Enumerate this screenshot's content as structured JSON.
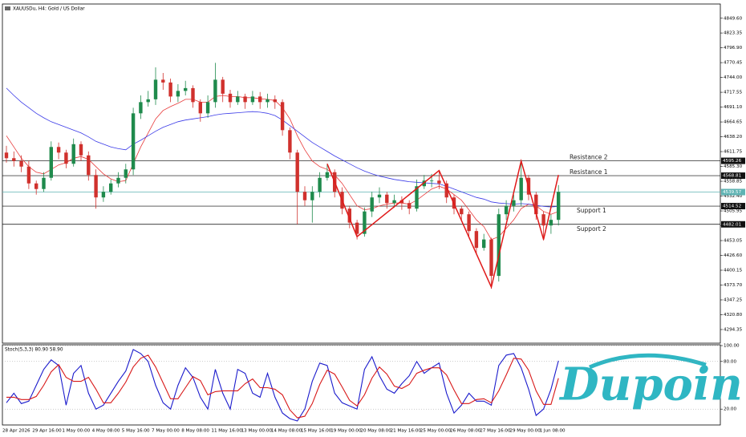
{
  "chart_data": [
    {
      "type": "candlestick",
      "title": "XAUUSDu, H4:  Gold / US Dollar",
      "watermark": "Dupoin",
      "categories": [
        "28 Apr 2026",
        null,
        null,
        null,
        "29 Apr 16:00",
        null,
        null,
        null,
        "1 May 00:00",
        null,
        null,
        null,
        "4 May 08:00",
        null,
        null,
        null,
        "5 May 16:00",
        null,
        null,
        null,
        "7 May 00:00",
        null,
        null,
        null,
        "8 May 08:00",
        null,
        null,
        null,
        "11 May 16:00",
        null,
        null,
        null,
        "13 May 00:00",
        null,
        null,
        null,
        "14 May 08:00",
        null,
        null,
        null,
        "15 May 16:00",
        null,
        null,
        null,
        "19 May 00:00",
        null,
        null,
        null,
        "20 May 08:00",
        null,
        null,
        null,
        "21 May 16:00",
        null,
        null,
        null,
        "25 May 00:00",
        null,
        null,
        null,
        "26 May 08:00",
        null,
        null,
        null,
        "27 May 16:00",
        null,
        null,
        null,
        "29 May 00:00",
        null,
        null,
        null,
        "1 Jun 08:00",
        null,
        null
      ],
      "open": [
        4610,
        4600,
        4595,
        4585,
        4555,
        4545,
        4565,
        4620,
        4610,
        4590,
        4625,
        4605,
        4570,
        4530,
        4540,
        4555,
        4565,
        4580,
        4680,
        4700,
        4705,
        4740,
        4735,
        4710,
        4720,
        4725,
        4700,
        4680,
        4700,
        4740,
        4715,
        4700,
        4710,
        4700,
        4710,
        4700,
        4705,
        4700,
        4650,
        4610,
        4540,
        4525,
        4540,
        4565,
        4575,
        4540,
        4510,
        4485,
        4465,
        4505,
        4530,
        4535,
        4520,
        4525,
        4520,
        4510,
        4550,
        4560,
        4560,
        4555,
        4530,
        4510,
        4500,
        4470,
        4440,
        4455,
        4390,
        4500,
        4515,
        4525,
        4565,
        4535,
        4500,
        4480,
        4490
      ],
      "high": [
        4622,
        4612,
        4605,
        4595,
        4560,
        4575,
        4630,
        4628,
        4615,
        4635,
        4630,
        4612,
        4580,
        4550,
        4562,
        4575,
        4590,
        4690,
        4712,
        4720,
        4762,
        4752,
        4742,
        4732,
        4738,
        4730,
        4705,
        4712,
        4770,
        4745,
        4722,
        4720,
        4715,
        4720,
        4718,
        4715,
        4712,
        4705,
        4655,
        4615,
        4550,
        4550,
        4575,
        4590,
        4580,
        4548,
        4515,
        4490,
        4512,
        4540,
        4548,
        4540,
        4535,
        4532,
        4525,
        4562,
        4570,
        4572,
        4577,
        4560,
        4535,
        4515,
        4505,
        4475,
        4465,
        4458,
        4510,
        4525,
        4535,
        4592,
        4570,
        4540,
        4505,
        4500,
        4552
      ],
      "low": [
        4592,
        4585,
        4575,
        4545,
        4535,
        4540,
        4560,
        4598,
        4582,
        4585,
        4595,
        4560,
        4510,
        4522,
        4535,
        4548,
        4555,
        4570,
        4670,
        4692,
        4695,
        4722,
        4700,
        4700,
        4712,
        4690,
        4665,
        4672,
        4690,
        4700,
        4690,
        4695,
        4688,
        4695,
        4688,
        4690,
        4688,
        4640,
        4598,
        4482,
        4515,
        4485,
        4530,
        4560,
        4530,
        4500,
        4475,
        4455,
        4460,
        4495,
        4520,
        4510,
        4512,
        4508,
        4500,
        4505,
        4545,
        4548,
        4545,
        4520,
        4500,
        4490,
        4460,
        4430,
        4435,
        4367,
        4380,
        4490,
        4505,
        4515,
        4525,
        4490,
        4453,
        4465,
        4480
      ],
      "close": [
        4600,
        4595,
        4585,
        4555,
        4545,
        4565,
        4620,
        4610,
        4590,
        4625,
        4605,
        4570,
        4530,
        4540,
        4555,
        4565,
        4580,
        4680,
        4700,
        4705,
        4740,
        4735,
        4710,
        4720,
        4725,
        4700,
        4680,
        4700,
        4740,
        4715,
        4700,
        4710,
        4700,
        4710,
        4700,
        4705,
        4700,
        4650,
        4610,
        4540,
        4525,
        4540,
        4565,
        4575,
        4540,
        4510,
        4485,
        4465,
        4505,
        4530,
        4535,
        4520,
        4525,
        4520,
        4510,
        4550,
        4560,
        4560,
        4555,
        4530,
        4510,
        4500,
        4470,
        4440,
        4455,
        4390,
        4500,
        4515,
        4525,
        4565,
        4535,
        4500,
        4480,
        4490,
        4540
      ],
      "up_color": "#1f8a4c",
      "down_color": "#d0312d",
      "moving_averages": [
        {
          "color": "#e83a3a",
          "values": [
            4640,
            4620,
            4600,
            4585,
            4575,
            4572,
            4580,
            4588,
            4592,
            4600,
            4603,
            4598,
            4585,
            4572,
            4563,
            4558,
            4560,
            4590,
            4620,
            4645,
            4670,
            4685,
            4692,
            4698,
            4705,
            4705,
            4700,
            4700,
            4710,
            4712,
            4710,
            4710,
            4708,
            4708,
            4706,
            4705,
            4703,
            4690,
            4670,
            4640,
            4615,
            4595,
            4585,
            4580,
            4570,
            4555,
            4535,
            4515,
            4508,
            4510,
            4515,
            4518,
            4520,
            4520,
            4518,
            4525,
            4535,
            4545,
            4550,
            4545,
            4535,
            4525,
            4508,
            4490,
            4478,
            4455,
            4460,
            4475,
            4490,
            4510,
            4518,
            4515,
            4505,
            4500,
            4505
          ]
        },
        {
          "color": "#3a3ae8",
          "values": [
            4725,
            4712,
            4700,
            4690,
            4680,
            4672,
            4665,
            4660,
            4655,
            4650,
            4645,
            4638,
            4630,
            4625,
            4620,
            4617,
            4615,
            4625,
            4632,
            4640,
            4648,
            4655,
            4660,
            4665,
            4668,
            4670,
            4672,
            4674,
            4677,
            4679,
            4680,
            4681,
            4682,
            4683,
            4682,
            4680,
            4676,
            4668,
            4658,
            4648,
            4638,
            4628,
            4620,
            4612,
            4604,
            4597,
            4590,
            4583,
            4577,
            4572,
            4568,
            4565,
            4562,
            4560,
            4558,
            4557,
            4556,
            4555,
            4554,
            4550,
            4545,
            4540,
            4535,
            4530,
            4527,
            4522,
            4520,
            4519,
            4518,
            4519,
            4518,
            4516,
            4514,
            4513,
            4514
          ]
        }
      ],
      "pattern": {
        "color": "#e01818",
        "x": [
          43,
          47,
          58,
          65,
          69,
          72,
          74
        ],
        "values": [
          4590,
          4460,
          4578,
          4370,
          4595,
          4455,
          4570
        ]
      },
      "levels": [
        {
          "label": "Resistance 2",
          "value": 4595.26
        },
        {
          "label": "Resistance 1",
          "value": 4568.81
        },
        {
          "label": "Support 1",
          "value": 4514.52
        },
        {
          "label": "Support 2",
          "value": 4482.01
        }
      ],
      "current_price": 4539.57,
      "current_color": "#5fb3b3",
      "ylim": [
        4270,
        4875
      ],
      "yticks": [
        {
          "value": 4849.6,
          "label": "4849.60"
        },
        {
          "value": 4823.35,
          "label": "4823.35"
        },
        {
          "value": 4796.9,
          "label": "4796.90"
        },
        {
          "value": 4770.45,
          "label": "4770.45"
        },
        {
          "value": 4744,
          "label": "4744.00"
        },
        {
          "value": 4717.55,
          "label": "4717.55"
        },
        {
          "value": 4691.1,
          "label": "4691.10"
        },
        {
          "value": 4664.65,
          "label": "4664.65"
        },
        {
          "value": 4638.2,
          "label": "4638.20"
        },
        {
          "value": 4611.75,
          "label": "4611.75"
        },
        {
          "value": 4585.3,
          "label": "4585.30"
        },
        {
          "value": 4558.85,
          "label": "4558.85"
        },
        {
          "value": 4532.4,
          "label": "4532.40"
        },
        {
          "value": 4505.95,
          "label": "4505.95"
        },
        {
          "value": 4479.5,
          "label": "4479.50"
        },
        {
          "value": 4453.05,
          "label": "4453.05"
        },
        {
          "value": 4426.6,
          "label": "4426.60"
        },
        {
          "value": 4400.15,
          "label": "4400.15"
        },
        {
          "value": 4373.7,
          "label": "4373.70"
        },
        {
          "value": 4347.25,
          "label": "4347.25"
        },
        {
          "value": 4320.8,
          "label": "4320.80"
        },
        {
          "value": 4294.35,
          "label": "4294.35"
        }
      ]
    },
    {
      "type": "line",
      "title": "Stoch(5,3,3) 80.90 58.90",
      "series": [
        {
          "color": "#1a1acc",
          "values": [
            28,
            40,
            27,
            30,
            50,
            70,
            82,
            75,
            25,
            65,
            75,
            40,
            20,
            25,
            40,
            55,
            68,
            95,
            90,
            80,
            50,
            28,
            20,
            50,
            72,
            60,
            35,
            20,
            70,
            40,
            20,
            70,
            65,
            40,
            35,
            65,
            35,
            15,
            8,
            5,
            20,
            55,
            78,
            75,
            40,
            28,
            24,
            20,
            70,
            86,
            62,
            45,
            40,
            52,
            62,
            80,
            65,
            72,
            78,
            40,
            15,
            25,
            40,
            30,
            30,
            25,
            75,
            88,
            90,
            72,
            45,
            12,
            20,
            45,
            80.9
          ]
        },
        {
          "color": "#d81818",
          "values": [
            35,
            35,
            32,
            32,
            36,
            50,
            67,
            76,
            60,
            55,
            55,
            60,
            45,
            28,
            28,
            40,
            54,
            73,
            84,
            88,
            73,
            53,
            33,
            33,
            47,
            61,
            56,
            38,
            42,
            43,
            43,
            43,
            52,
            58,
            47,
            47,
            45,
            38,
            19,
            9,
            11,
            27,
            51,
            69,
            64,
            48,
            31,
            24,
            38,
            59,
            73,
            64,
            49,
            46,
            51,
            65,
            69,
            72,
            72,
            63,
            44,
            27,
            27,
            32,
            33,
            28,
            43,
            63,
            84,
            83,
            69,
            43,
            26,
            26,
            58.9
          ]
        }
      ],
      "ylim": [
        0,
        100
      ],
      "yticks": [
        {
          "value": 100,
          "label": "100.00"
        },
        {
          "value": 80,
          "label": "80.00"
        },
        {
          "value": 20,
          "label": "20.00"
        }
      ]
    }
  ]
}
